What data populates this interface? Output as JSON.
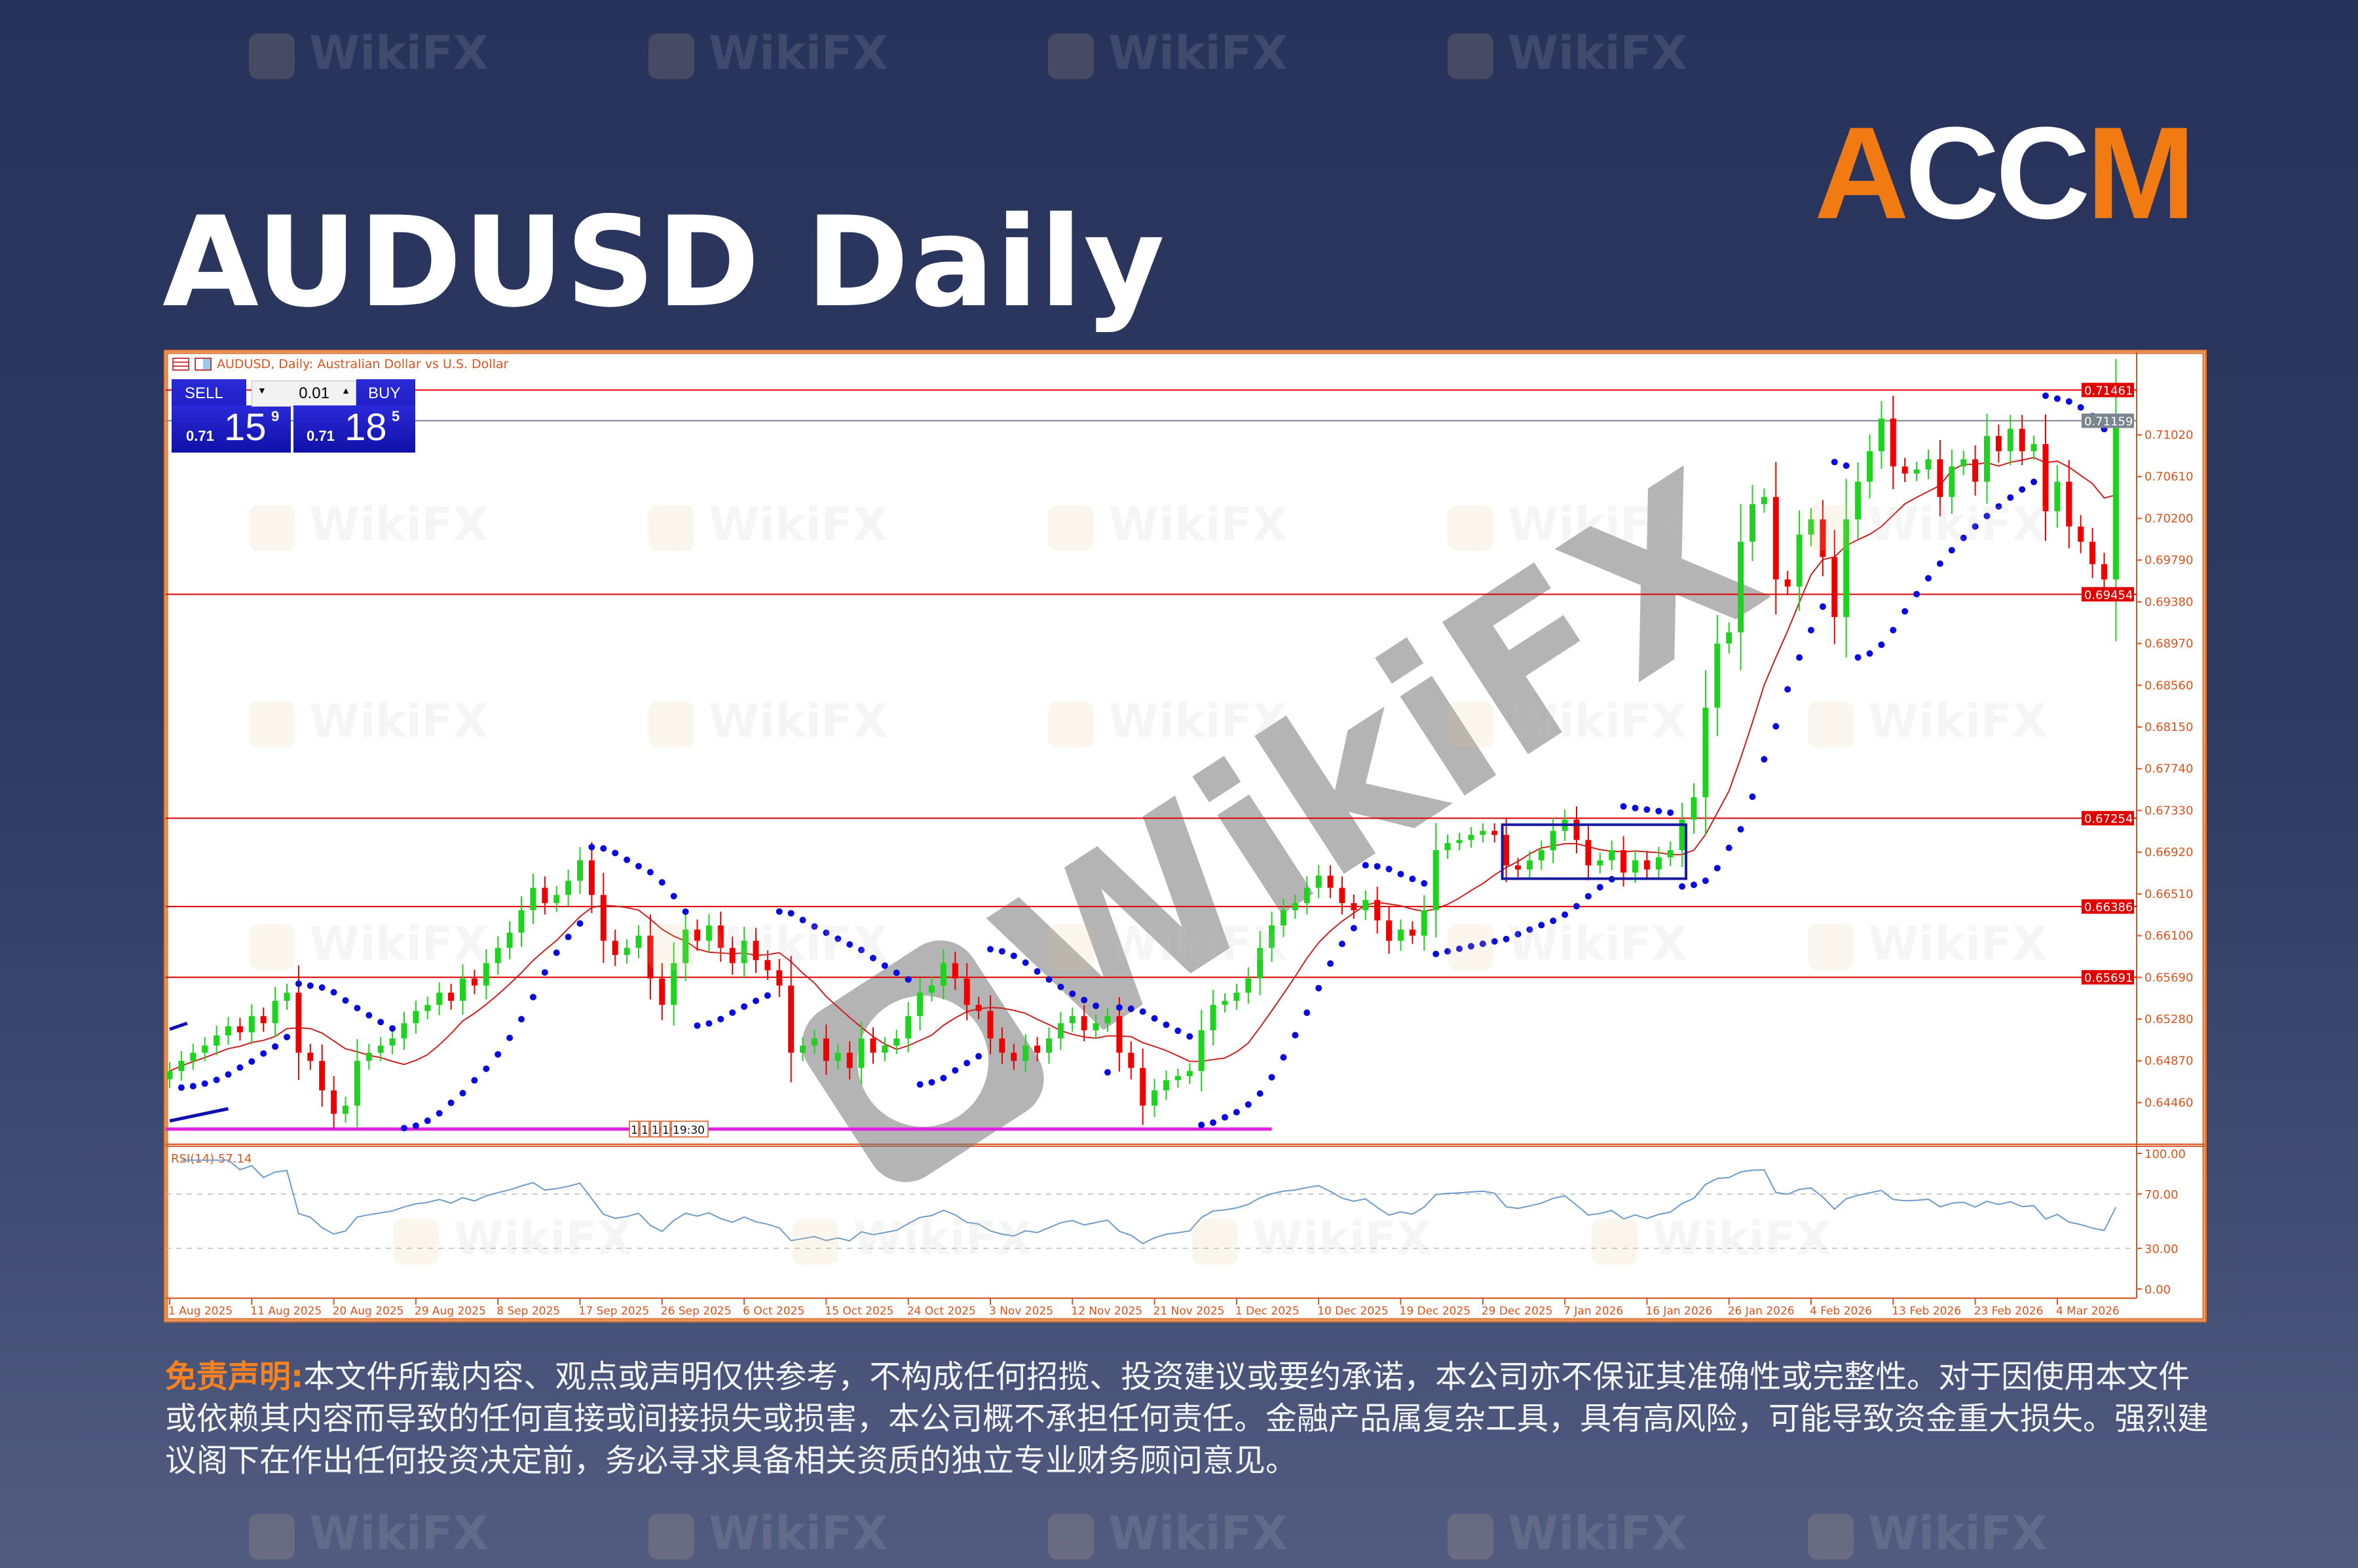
{
  "title": "AUDUSD Daily",
  "logo": {
    "letters": [
      "A",
      "CC",
      "M"
    ],
    "colors": {
      "orange": "#f27a12",
      "white": "#ffffff"
    }
  },
  "watermark": {
    "text": "WikiFX"
  },
  "chart_header": {
    "title": "AUDUSD, Daily:  Australian Dollar vs U.S. Dollar"
  },
  "trade_panel": {
    "sell_label": "SELL",
    "buy_label": "BUY",
    "lot": "0.01",
    "sell_price": {
      "prefix": "0.71",
      "big": "15",
      "sup": "9"
    },
    "buy_price": {
      "prefix": "0.71",
      "big": "18",
      "sup": "5"
    }
  },
  "chart_data": {
    "type": "candlestick",
    "symbol": "AUDUSD",
    "timeframe": "Daily",
    "closes": [
      0.6477,
      0.6487,
      0.6495,
      0.6502,
      0.6512,
      0.6521,
      0.6515,
      0.6531,
      0.6524,
      0.6546,
      0.6554,
      0.6495,
      0.6487,
      0.6458,
      0.6435,
      0.6443,
      0.6487,
      0.6495,
      0.6502,
      0.6509,
      0.6524,
      0.6536,
      0.6542,
      0.6554,
      0.6546,
      0.6568,
      0.6561,
      0.6583,
      0.6598,
      0.6613,
      0.6635,
      0.6657,
      0.6642,
      0.665,
      0.6664,
      0.6684,
      0.665,
      0.6605,
      0.6591,
      0.6598,
      0.661,
      0.6568,
      0.6542,
      0.6583,
      0.6616,
      0.6605,
      0.662,
      0.6598,
      0.6583,
      0.6605,
      0.6586,
      0.6576,
      0.6561,
      0.6495,
      0.6502,
      0.6509,
      0.6487,
      0.6495,
      0.648,
      0.6509,
      0.6495,
      0.6502,
      0.6509,
      0.6531,
      0.6554,
      0.6561,
      0.6583,
      0.6568,
      0.6542,
      0.6536,
      0.6509,
      0.6495,
      0.6487,
      0.6502,
      0.6495,
      0.6509,
      0.6524,
      0.6531,
      0.6517,
      0.6524,
      0.6531,
      0.6495,
      0.648,
      0.6443,
      0.6458,
      0.6468,
      0.6472,
      0.6477,
      0.6517,
      0.6542,
      0.6546,
      0.6554,
      0.6568,
      0.6598,
      0.662,
      0.6635,
      0.6642,
      0.6657,
      0.6669,
      0.6657,
      0.6642,
      0.6635,
      0.6645,
      0.6625,
      0.6605,
      0.6616,
      0.661,
      0.6635,
      0.6694,
      0.6701,
      0.6704,
      0.6709,
      0.6713,
      0.6709,
      0.6679,
      0.6675,
      0.6684,
      0.6694,
      0.6713,
      0.6724,
      0.6704,
      0.6679,
      0.6684,
      0.6694,
      0.6672,
      0.6684,
      0.6675,
      0.6687,
      0.6694,
      0.6724,
      0.6746,
      0.6834,
      0.6897,
      0.6908,
      0.6997,
      0.7034,
      0.7041,
      0.696,
      0.6953,
      0.7004,
      0.7019,
      0.6982,
      0.6923,
      0.7019,
      0.7056,
      0.7086,
      0.7118,
      0.7071,
      0.7064,
      0.7068,
      0.7078,
      0.7041,
      0.7071,
      0.7078,
      0.7056,
      0.7101,
      0.7086,
      0.7108,
      0.7086,
      0.7093,
      0.7027,
      0.7056,
      0.7012,
      0.6997,
      0.6975,
      0.696,
      0.7116
    ],
    "x_tick_labels": [
      "1 Aug 2025",
      "11 Aug 2025",
      "20 Aug 2025",
      "29 Aug 2025",
      "8 Sep 2025",
      "17 Sep 2025",
      "26 Sep 2025",
      "6 Oct 2025",
      "15 Oct 2025",
      "24 Oct 2025",
      "3 Nov 2025",
      "12 Nov 2025",
      "21 Nov 2025",
      "1 Dec 2025",
      "10 Dec 2025",
      "19 Dec 2025",
      "29 Dec 2025",
      "7 Jan 2026",
      "16 Jan 2026",
      "26 Jan 2026",
      "4 Feb 2026",
      "13 Feb 2026",
      "23 Feb 2026",
      "4 Mar 2026"
    ],
    "x_tick_every_bars": 7,
    "y_tick_labels": [
      "0.71020",
      "0.70610",
      "0.70200",
      "0.69790",
      "0.69380",
      "0.68970",
      "0.68560",
      "0.68150",
      "0.67740",
      "0.67330",
      "0.66920",
      "0.66510",
      "0.66100",
      "0.65690",
      "0.65280",
      "0.64870",
      "0.64460"
    ],
    "ylim": [
      0.6405,
      0.7183
    ],
    "levels": [
      {
        "price": "0.71461",
        "color": "#e00000"
      },
      {
        "price": "0.71159",
        "color": "#7b858f"
      },
      {
        "price": "0.69454",
        "color": "#e00000"
      },
      {
        "price": "0.67254",
        "color": "#e00000"
      },
      {
        "price": "0.66386",
        "color": "#e00000"
      },
      {
        "price": "0.65691",
        "color": "#e00000"
      }
    ],
    "magenta_line": {
      "price": 0.642,
      "end_bar": 94,
      "color": "#e020e0",
      "marker_labels": [
        "1",
        "1",
        "1",
        "1",
        "19:30"
      ]
    },
    "consolidation_box": {
      "start_bar": 114,
      "end_bar": 129,
      "top": 0.6719,
      "bottom": 0.6666,
      "color": "#1a1aa0"
    },
    "trendlines": [
      {
        "from_bar": 0,
        "to_bar": 1.5,
        "from_price": 0.6518,
        "to_price": 0.6524
      },
      {
        "from_bar": 0,
        "to_bar": 5,
        "from_price": 0.6428,
        "to_price": 0.644
      }
    ],
    "indicators": {
      "moving_average": {
        "color": "#cc2020"
      },
      "parabolic_sar": {
        "color": "#0a0adc"
      },
      "rsi": {
        "label": "RSI(14) 57.14",
        "period": 14,
        "levels": [
          70,
          30
        ],
        "axis_labels": [
          "100.00",
          "70.00",
          "30.00",
          "0.00"
        ],
        "color": "#6f9bc7"
      }
    },
    "colors": {
      "up": "#1ed31e",
      "down": "#ee0000",
      "axis": "#d9541e"
    }
  },
  "disclaimer": {
    "label": "免责声明:",
    "text": "本文件所载内容、观点或声明仅供参考，不构成任何招揽、投资建议或要约承诺，本公司亦不保证其准确性或完整性。对于因使用本文件或依赖其内容而导致的任何直接或间接损失或损害，本公司概不承担任何责任。金融产品属复杂工具，具有高风险，可能导致资金重大损失。强烈建议阁下在作出任何投资决定前，务必寻求具备相关资质的独立专业财务顾问意见。"
  }
}
